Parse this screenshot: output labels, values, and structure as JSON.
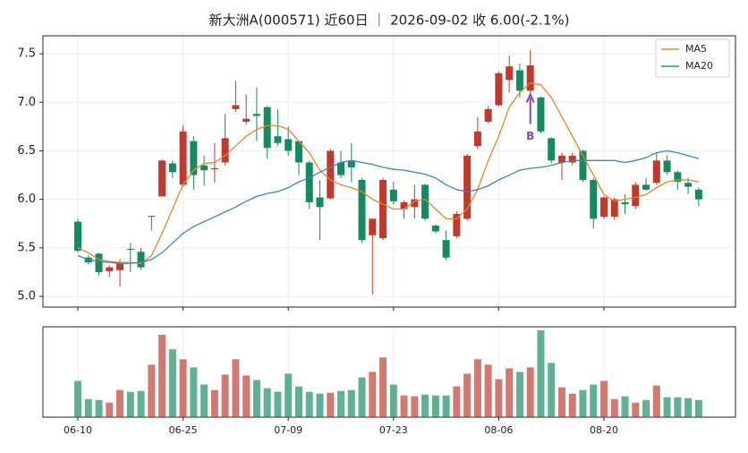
{
  "chart_data": {
    "type": "candlestick",
    "title": "新大洲A(000571) 近60日 ｜ 2026-09-02 收 6.00(-2.1%)",
    "categories": [
      "06-10",
      null,
      null,
      null,
      null,
      null,
      null,
      null,
      null,
      null,
      "06-25",
      null,
      null,
      null,
      null,
      null,
      null,
      null,
      null,
      null,
      "07-09",
      null,
      null,
      null,
      null,
      null,
      null,
      null,
      null,
      null,
      "07-23",
      null,
      null,
      null,
      null,
      null,
      null,
      null,
      null,
      null,
      "08-06",
      null,
      null,
      null,
      null,
      null,
      null,
      null,
      null,
      null,
      "08-20",
      null,
      null,
      null,
      null,
      null,
      null,
      null,
      null,
      null
    ],
    "open": [
      5.77,
      5.4,
      5.44,
      5.26,
      5.27,
      5.49,
      5.46,
      5.82,
      6.03,
      6.37,
      6.15,
      6.6,
      6.35,
      6.31,
      6.38,
      6.93,
      6.8,
      6.88,
      6.95,
      6.65,
      6.62,
      6.6,
      6.38,
      6.02,
      6.01,
      6.38,
      6.4,
      6.2,
      5.63,
      5.6,
      6.1,
      5.9,
      5.92,
      6.15,
      5.73,
      5.58,
      5.62,
      5.8,
      6.55,
      6.8,
      6.97,
      7.23,
      7.33,
      7.12,
      7.05,
      6.63,
      6.38,
      6.38,
      6.5,
      6.2,
      5.82,
      5.82,
      5.97,
      5.93,
      6.15,
      6.17,
      6.4,
      6.28,
      6.17,
      6.1
    ],
    "high": [
      5.8,
      5.42,
      5.45,
      5.32,
      5.38,
      5.55,
      5.5,
      5.83,
      6.41,
      6.4,
      6.76,
      6.65,
      6.45,
      6.58,
      6.88,
      7.22,
      7.08,
      7.15,
      6.96,
      6.93,
      6.75,
      6.6,
      6.4,
      6.2,
      6.52,
      6.5,
      6.58,
      6.22,
      5.8,
      6.22,
      6.18,
      5.99,
      6.15,
      6.16,
      5.74,
      5.68,
      5.88,
      6.47,
      6.85,
      6.96,
      7.32,
      7.48,
      7.4,
      7.54,
      7.06,
      6.64,
      6.48,
      6.48,
      6.51,
      6.22,
      6.03,
      6.02,
      6.05,
      6.18,
      6.22,
      6.48,
      6.45,
      6.3,
      6.22,
      6.12
    ],
    "low": [
      5.45,
      5.33,
      5.22,
      5.2,
      5.1,
      5.25,
      5.27,
      5.68,
      6.03,
      6.22,
      6.13,
      6.1,
      6.14,
      6.17,
      6.35,
      6.9,
      6.77,
      6.6,
      6.42,
      6.55,
      6.45,
      6.25,
      5.9,
      5.58,
      6.0,
      6.22,
      6.18,
      5.55,
      5.02,
      5.58,
      5.95,
      5.8,
      5.8,
      5.78,
      5.65,
      5.37,
      5.6,
      5.78,
      6.52,
      6.78,
      6.96,
      7.1,
      7.05,
      7.1,
      6.68,
      6.37,
      6.2,
      6.35,
      6.18,
      5.7,
      5.8,
      5.79,
      5.85,
      5.9,
      6.09,
      6.15,
      6.25,
      6.1,
      6.05,
      5.93
    ],
    "close": [
      5.47,
      5.35,
      5.25,
      5.3,
      5.35,
      5.48,
      5.3,
      5.83,
      6.4,
      6.28,
      6.7,
      6.25,
      6.3,
      6.32,
      6.63,
      6.97,
      6.83,
      6.86,
      6.53,
      6.58,
      6.5,
      6.38,
      5.97,
      5.92,
      6.5,
      6.25,
      6.33,
      5.58,
      5.8,
      6.2,
      5.98,
      5.97,
      6.0,
      5.8,
      5.67,
      5.4,
      5.85,
      6.45,
      6.7,
      6.93,
      7.3,
      7.37,
      7.12,
      7.38,
      6.7,
      6.4,
      6.45,
      6.45,
      6.2,
      5.8,
      6.02,
      6.0,
      5.95,
      6.15,
      6.1,
      6.4,
      6.28,
      6.18,
      6.13,
      6.0
    ],
    "series": [
      {
        "name": "MA5",
        "color": "#e8862a",
        "values": [
          5.5,
          5.45,
          5.38,
          5.36,
          5.35,
          5.35,
          5.34,
          5.42,
          5.65,
          5.9,
          6.15,
          6.3,
          6.37,
          6.38,
          6.45,
          6.55,
          6.65,
          6.72,
          6.76,
          6.76,
          6.72,
          6.6,
          6.48,
          6.3,
          6.2,
          6.15,
          6.12,
          6.08,
          6.0,
          5.95,
          5.9,
          5.9,
          5.98,
          6.0,
          5.9,
          5.8,
          5.8,
          5.9,
          6.1,
          6.4,
          6.65,
          6.95,
          7.1,
          7.2,
          7.18,
          7.05,
          6.85,
          6.65,
          6.45,
          6.25,
          6.05,
          5.98,
          6.0,
          6.02,
          6.05,
          6.12,
          6.18,
          6.2,
          6.2,
          6.18
        ]
      },
      {
        "name": "MA20",
        "color": "#3a87b8",
        "values": [
          5.42,
          5.38,
          5.36,
          5.35,
          5.34,
          5.34,
          5.35,
          5.38,
          5.45,
          5.55,
          5.65,
          5.72,
          5.77,
          5.82,
          5.87,
          5.92,
          5.98,
          6.03,
          6.06,
          6.08,
          6.12,
          6.18,
          6.22,
          6.28,
          6.33,
          6.38,
          6.4,
          6.38,
          6.36,
          6.33,
          6.31,
          6.3,
          6.28,
          6.26,
          6.22,
          6.15,
          6.1,
          6.08,
          6.1,
          6.14,
          6.2,
          6.25,
          6.3,
          6.32,
          6.33,
          6.35,
          6.38,
          6.4,
          6.4,
          6.4,
          6.4,
          6.4,
          6.38,
          6.4,
          6.43,
          6.48,
          6.5,
          6.48,
          6.45,
          6.42
        ]
      }
    ],
    "volume": [
      40,
      20,
      19,
      16,
      30,
      28,
      29,
      58,
      91,
      75,
      64,
      55,
      36,
      30,
      47,
      64,
      46,
      41,
      32,
      28,
      48,
      34,
      28,
      26,
      27,
      29,
      30,
      44,
      50,
      66,
      36,
      24,
      23,
      25,
      24,
      24,
      34,
      48,
      64,
      58,
      42,
      54,
      50,
      55,
      96,
      60,
      33,
      26,
      30,
      36,
      40,
      20,
      23,
      16,
      19,
      35,
      22,
      22,
      21,
      19
    ],
    "up_color": "#c0392b",
    "down_color": "#148a60",
    "ylim": [
      4.89,
      7.685
    ],
    "yticks": [
      {
        "value": 5,
        "label": "5.0"
      },
      {
        "value": 5.5,
        "label": "5.5"
      },
      {
        "value": 6,
        "label": "6.0"
      },
      {
        "value": 6.5,
        "label": "6.5"
      },
      {
        "value": 7,
        "label": "7.0"
      },
      {
        "value": 7.5,
        "label": "7.5"
      }
    ],
    "grid": true,
    "legend": "upper right",
    "annotations": [
      {
        "text": "B",
        "index": 43,
        "color": "#8e44ad"
      }
    ]
  }
}
